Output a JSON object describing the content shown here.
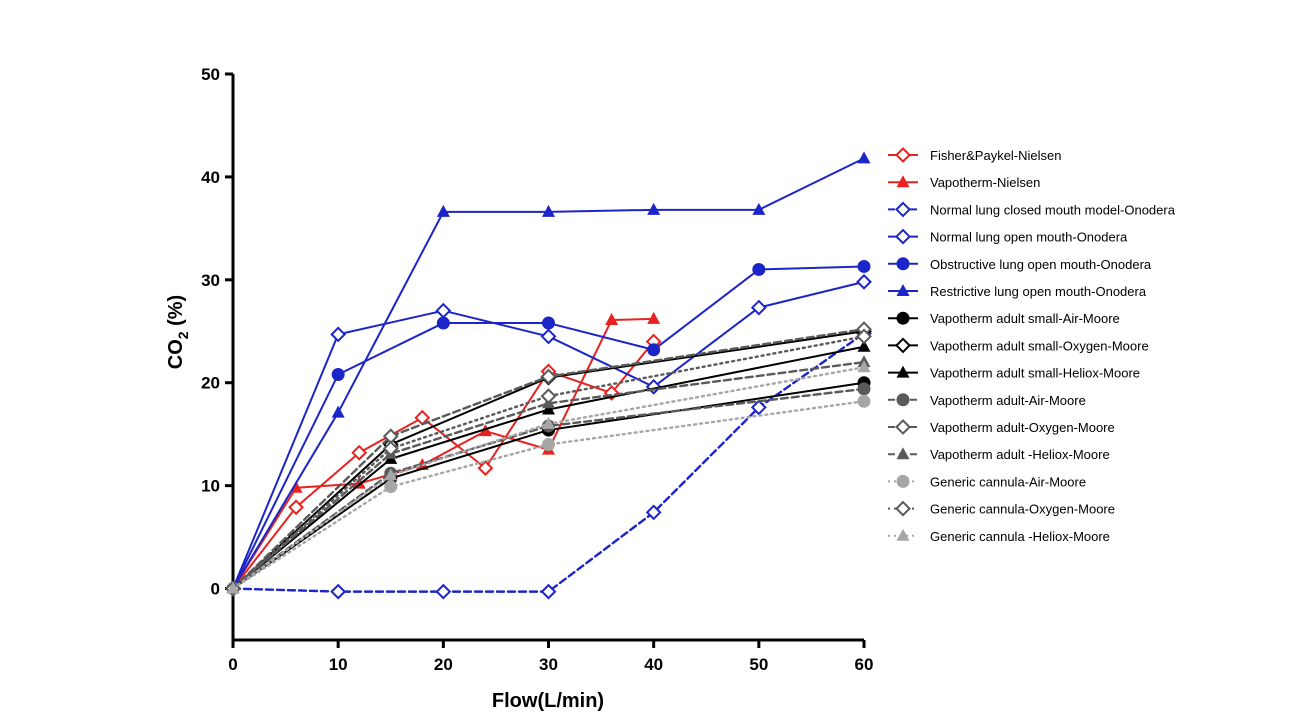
{
  "chart_data": {
    "type": "line",
    "title": "",
    "xlabel": "Flow(L/min)",
    "ylabel": "CO",
    "ylabel_sub": "2",
    "ylabel_unit": " (%)",
    "xlim": [
      0,
      60
    ],
    "ylim": [
      -5,
      50
    ],
    "xticks": [
      0,
      10,
      20,
      30,
      40,
      50,
      60
    ],
    "yticks": [
      0,
      10,
      20,
      30,
      40,
      50
    ],
    "grid": false,
    "legend_position": "right",
    "series": [
      {
        "name": "Fisher&Paykel-Nielsen",
        "color": "#e8221f",
        "marker": "diamond-open",
        "dash": "solid",
        "x": [
          0,
          6,
          12,
          18,
          24,
          30,
          36,
          40
        ],
        "y": [
          0,
          7.9,
          13.2,
          16.6,
          11.7,
          21.1,
          19.0,
          24.0
        ]
      },
      {
        "name": "Vapotherm-Nielsen",
        "color": "#e8221f",
        "marker": "triangle",
        "dash": "solid",
        "x": [
          0,
          6,
          12,
          18,
          24,
          30,
          36,
          40
        ],
        "y": [
          0,
          9.8,
          10.2,
          12.0,
          15.3,
          13.5,
          26.1,
          26.2
        ]
      },
      {
        "name": "Normal lung closed mouth model-Onodera",
        "color": "#1c25c8",
        "marker": "diamond-open",
        "dash": "dashed",
        "x": [
          0,
          10,
          20,
          30,
          40,
          50,
          60
        ],
        "y": [
          0,
          -0.3,
          -0.3,
          -0.3,
          7.4,
          17.6,
          24.8
        ]
      },
      {
        "name": "Normal lung open mouth-Onodera",
        "color": "#1c25c8",
        "marker": "diamond-open",
        "dash": "solid",
        "x": [
          0,
          10,
          20,
          30,
          40,
          50,
          60
        ],
        "y": [
          0,
          24.7,
          27.0,
          24.5,
          19.6,
          27.3,
          29.8
        ]
      },
      {
        "name": "Obstructive lung open mouth-Onodera",
        "color": "#1c25c8",
        "marker": "circle",
        "dash": "solid",
        "x": [
          0,
          10,
          20,
          30,
          40,
          50,
          60
        ],
        "y": [
          0,
          20.8,
          25.8,
          25.8,
          23.2,
          31.0,
          31.3
        ]
      },
      {
        "name": "Restrictive lung open mouth-Onodera",
        "color": "#1c25c8",
        "marker": "triangle",
        "dash": "solid",
        "x": [
          0,
          10,
          20,
          30,
          40,
          50,
          60
        ],
        "y": [
          0,
          17.1,
          36.6,
          36.6,
          36.8,
          36.8,
          41.8
        ]
      },
      {
        "name": "Vapotherm adult small-Air-Moore",
        "color": "#000000",
        "marker": "circle",
        "dash": "solid",
        "x": [
          0,
          15,
          30,
          60
        ],
        "y": [
          0,
          10.7,
          15.4,
          20.0
        ]
      },
      {
        "name": "Vapotherm adult small-Oxygen-Moore",
        "color": "#000000",
        "marker": "diamond-open",
        "dash": "solid",
        "x": [
          0,
          15,
          30,
          60
        ],
        "y": [
          0,
          14.0,
          20.5,
          25.0
        ]
      },
      {
        "name": "Vapotherm adult small-Heliox-Moore",
        "color": "#000000",
        "marker": "triangle",
        "dash": "solid",
        "x": [
          0,
          15,
          30,
          60
        ],
        "y": [
          0,
          12.6,
          17.4,
          23.5
        ]
      },
      {
        "name": "Vapotherm adult-Air-Moore",
        "color": "#5a5a5a",
        "marker": "circle",
        "dash": "dashed",
        "x": [
          0,
          15,
          30,
          60
        ],
        "y": [
          0,
          11.2,
          15.8,
          19.4
        ]
      },
      {
        "name": "Vapotherm adult-Oxygen-Moore",
        "color": "#5a5a5a",
        "marker": "diamond-open",
        "dash": "dashed",
        "x": [
          0,
          15,
          30,
          60
        ],
        "y": [
          0,
          14.8,
          20.6,
          25.2
        ]
      },
      {
        "name": "Vapotherm adult -Heliox-Moore",
        "color": "#5a5a5a",
        "marker": "triangle",
        "dash": "dashed",
        "x": [
          0,
          15,
          30,
          60
        ],
        "y": [
          0,
          13.1,
          18.0,
          22.0
        ]
      },
      {
        "name": "Generic cannula-Air-Moore",
        "color": "#a6a6a6",
        "marker": "circle",
        "dash": "dotted",
        "x": [
          0,
          15,
          30,
          60
        ],
        "y": [
          0,
          9.9,
          14.0,
          18.2
        ]
      },
      {
        "name": "Generic cannula-Oxygen-Moore",
        "color": "#5a5a5a",
        "marker": "diamond-open",
        "dash": "dotted",
        "x": [
          0,
          15,
          30,
          60
        ],
        "y": [
          0,
          13.6,
          18.7,
          24.5
        ]
      },
      {
        "name": "Generic cannula -Heliox-Moore",
        "color": "#a6a6a6",
        "marker": "triangle",
        "dash": "dotted",
        "x": [
          0,
          15,
          30,
          60
        ],
        "y": [
          0,
          11.0,
          16.0,
          21.5
        ]
      }
    ]
  }
}
